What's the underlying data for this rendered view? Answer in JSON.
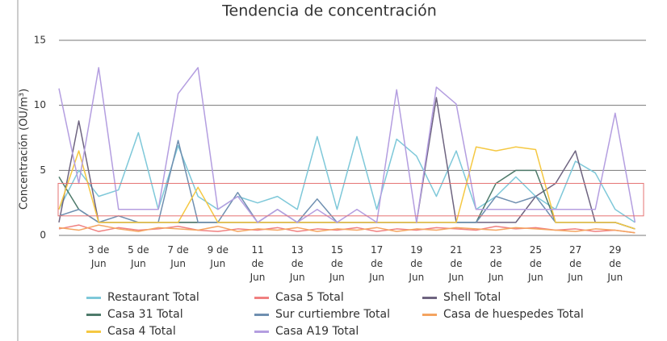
{
  "chart_data": {
    "type": "line",
    "title": "Tendencia de concentración",
    "y_label": "Concentración (OU/m³)",
    "categories": [
      null,
      null,
      "3 de Jun",
      null,
      "5 de Jun",
      null,
      "7 de Jun",
      null,
      "9 de Jun",
      null,
      "11 de Jun",
      null,
      "13 de Jun",
      null,
      "15 de Jun",
      null,
      "17 de Jun",
      null,
      "19 de Jun",
      null,
      "21 de Jun",
      null,
      "23 de Jun",
      null,
      "25 de Jun",
      null,
      "27 de Jun",
      null,
      "29 de Jun",
      null
    ],
    "series": [
      {
        "name": "Restaurant Total",
        "color": "#7ec8d9",
        "values": [
          2,
          5,
          3,
          3.5,
          7.9,
          2,
          6.9,
          3,
          2,
          3,
          2.5,
          3,
          2,
          7.6,
          2,
          7.6,
          2,
          7.4,
          6.1,
          3,
          6.5,
          2,
          3,
          4.5,
          3,
          2,
          5.7,
          4.8,
          2,
          1
        ]
      },
      {
        "name": "Casa 5 Total",
        "color": "#f08080",
        "values": [
          0.5,
          0.8,
          0.3,
          0.6,
          0.4,
          0.5,
          0.7,
          0.4,
          0.3,
          0.5,
          0.4,
          0.6,
          0.3,
          0.5,
          0.4,
          0.6,
          0.3,
          0.5,
          0.4,
          0.6,
          0.5,
          0.4,
          0.7,
          0.5,
          0.6,
          0.4,
          0.5,
          0.3,
          0.4,
          0.2
        ]
      },
      {
        "name": "Shell Total",
        "color": "#6e6480",
        "values": [
          1,
          8.8,
          1,
          1,
          1,
          1,
          1,
          1,
          1,
          1,
          1,
          1,
          1,
          1,
          1,
          1,
          1,
          1,
          1,
          10.6,
          1,
          1,
          1,
          1,
          3,
          4,
          6.5,
          1,
          1,
          0.5
        ]
      },
      {
        "name": "Casa 31 Total",
        "color": "#4e7a6a",
        "values": [
          4.5,
          2,
          1,
          1,
          1,
          1,
          1,
          1,
          1,
          1,
          1,
          1,
          1,
          1,
          1,
          1,
          1,
          1,
          1,
          1,
          1,
          1,
          4,
          5,
          5,
          1,
          1,
          1,
          1,
          0.5
        ]
      },
      {
        "name": "Sur curtiembre Total",
        "color": "#6f8fb0",
        "values": [
          1.5,
          2,
          1,
          1.5,
          1,
          1,
          7.3,
          1,
          1,
          3.3,
          1,
          2,
          1,
          2.8,
          1,
          1,
          1,
          1,
          1,
          1,
          1,
          1,
          3,
          2.5,
          3,
          1,
          1,
          1,
          1,
          0.5
        ]
      },
      {
        "name": "Casa de huespedes Total",
        "color": "#f4a460",
        "values": [
          0.6,
          0.4,
          0.8,
          0.5,
          0.3,
          0.6,
          0.5,
          0.4,
          0.7,
          0.3,
          0.5,
          0.4,
          0.6,
          0.3,
          0.5,
          0.4,
          0.6,
          0.3,
          0.5,
          0.4,
          0.6,
          0.5,
          0.4,
          0.6,
          0.5,
          0.4,
          0.3,
          0.5,
          0.4,
          0.2
        ]
      },
      {
        "name": "Casa 4 Total",
        "color": "#f5c842",
        "values": [
          2,
          6.5,
          1,
          1,
          1,
          1,
          1,
          3.7,
          1,
          1,
          1,
          1,
          1,
          1,
          1,
          1,
          1,
          1,
          1,
          1,
          1,
          6.8,
          6.5,
          6.8,
          6.6,
          1,
          1,
          1,
          1,
          0.5
        ]
      },
      {
        "name": "Casa A19 Total",
        "color": "#b49ee0",
        "values": [
          11.3,
          4,
          12.9,
          2,
          2,
          2,
          10.9,
          12.9,
          2,
          3,
          1,
          2,
          1,
          2,
          1,
          2,
          1,
          11.2,
          1,
          11.4,
          10.1,
          2,
          2,
          2,
          2,
          2,
          2,
          2,
          9.4,
          1
        ]
      }
    ],
    "ylim": [
      0,
      15
    ],
    "yticks": [
      0,
      5,
      10,
      15
    ],
    "grid": true,
    "highlight": {
      "range": [
        1.5,
        4
      ],
      "color": "#e57373"
    }
  }
}
